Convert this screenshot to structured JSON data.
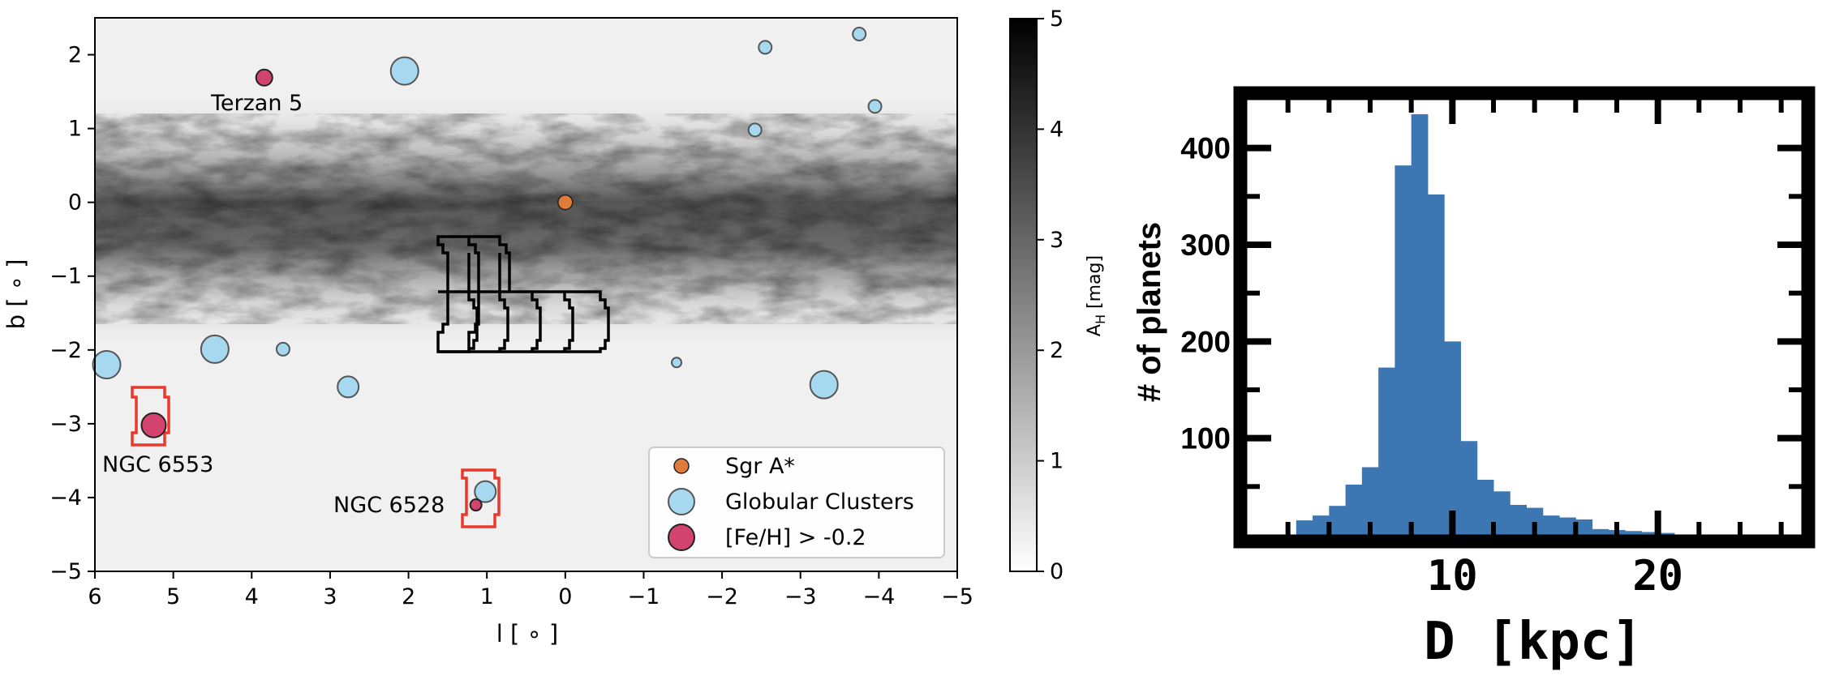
{
  "chart_data": [
    {
      "type": "scatter",
      "xlabel": "l [ ∘ ]",
      "ylabel": "b [ ∘ ]",
      "xlim": [
        6,
        -5
      ],
      "ylim": [
        -5,
        2.5
      ],
      "xticks": [
        6,
        5,
        4,
        3,
        2,
        1,
        0,
        -1,
        -2,
        -3,
        -4,
        -5
      ],
      "xtick_labels": [
        "6",
        "5",
        "4",
        "3",
        "2",
        "1",
        "0",
        "−1",
        "−2",
        "−3",
        "−4",
        "−5"
      ],
      "yticks": [
        2,
        1,
        0,
        -1,
        -2,
        -3,
        -4,
        -5
      ],
      "ytick_labels": [
        "2",
        "1",
        "0",
        "−1",
        "−2",
        "−3",
        "−4",
        "−5"
      ],
      "background": "extinction map A_H (grayscale)",
      "colorbar": {
        "label": "A",
        "label_sub": "H",
        "label_rest": " [mag]",
        "range": [
          0,
          5
        ],
        "ticks": [
          "0",
          "1",
          "2",
          "3",
          "4",
          "5"
        ]
      },
      "series": [
        {
          "name": "Sgr A*",
          "color": "#e07b39",
          "points": [
            {
              "l": 0.0,
              "b": 0.0
            }
          ]
        },
        {
          "name": "Globular Clusters",
          "color": "#a6d8ef",
          "points": [
            {
              "l": 2.05,
              "b": 1.78,
              "size": "large"
            },
            {
              "l": -2.55,
              "b": 2.1,
              "size": "small"
            },
            {
              "l": -3.75,
              "b": 2.28,
              "size": "small"
            },
            {
              "l": -2.42,
              "b": 0.98,
              "size": "small"
            },
            {
              "l": -3.95,
              "b": 1.3,
              "size": "small"
            },
            {
              "l": 5.85,
              "b": -2.2,
              "size": "large"
            },
            {
              "l": 4.47,
              "b": -1.99,
              "size": "large"
            },
            {
              "l": 3.6,
              "b": -1.99,
              "size": "small"
            },
            {
              "l": 2.77,
              "b": -2.5,
              "size": "medium"
            },
            {
              "l": -1.42,
              "b": -2.17,
              "size": "tiny"
            },
            {
              "l": -3.3,
              "b": -2.47,
              "size": "large"
            },
            {
              "l": 1.02,
              "b": -3.92,
              "size": "medium"
            }
          ]
        },
        {
          "name": "[Fe/H] > -0.2",
          "color": "#d2436e",
          "points": [
            {
              "l": 3.84,
              "b": 1.69,
              "label": "Terzan 5"
            },
            {
              "l": 5.25,
              "b": -3.02,
              "label": "NGC 6553"
            },
            {
              "l": 1.14,
              "b": -4.1,
              "label": "NGC 6528"
            }
          ]
        }
      ],
      "legend": {
        "position": "lower-right",
        "entries": [
          "Sgr A*",
          "Globular Clusters",
          "[Fe/H] > -0.2"
        ]
      },
      "annotations": [
        "Terzan 5",
        "NGC 6553",
        "NGC 6528"
      ]
    },
    {
      "type": "bar",
      "xlabel": "D [kpc]",
      "ylabel": "# of planets",
      "xlim": [
        0,
        27
      ],
      "ylim": [
        0,
        450
      ],
      "xticks": [
        10,
        20
      ],
      "xtick_labels": [
        "10",
        "20"
      ],
      "yticks": [
        100,
        200,
        300,
        400
      ],
      "ytick_labels": [
        "100",
        "200",
        "300",
        "400"
      ],
      "color": "#3d77b3",
      "bin_width": 0.8,
      "bins": [
        {
          "x0": 2.4,
          "count": 15
        },
        {
          "x0": 3.2,
          "count": 20
        },
        {
          "x0": 4.0,
          "count": 30
        },
        {
          "x0": 4.8,
          "count": 52
        },
        {
          "x0": 5.6,
          "count": 70
        },
        {
          "x0": 6.4,
          "count": 173
        },
        {
          "x0": 7.2,
          "count": 382
        },
        {
          "x0": 8.0,
          "count": 435
        },
        {
          "x0": 8.8,
          "count": 352
        },
        {
          "x0": 9.6,
          "count": 200
        },
        {
          "x0": 10.4,
          "count": 97
        },
        {
          "x0": 11.2,
          "count": 57
        },
        {
          "x0": 12.0,
          "count": 45
        },
        {
          "x0": 12.8,
          "count": 31
        },
        {
          "x0": 13.6,
          "count": 28
        },
        {
          "x0": 14.4,
          "count": 20
        },
        {
          "x0": 15.2,
          "count": 18
        },
        {
          "x0": 16.0,
          "count": 16
        },
        {
          "x0": 16.8,
          "count": 6
        },
        {
          "x0": 17.6,
          "count": 5
        },
        {
          "x0": 18.4,
          "count": 4
        },
        {
          "x0": 19.2,
          "count": 3
        },
        {
          "x0": 20.0,
          "count": 2
        }
      ]
    }
  ]
}
